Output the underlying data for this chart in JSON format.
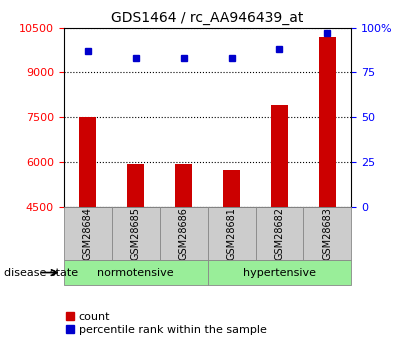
{
  "title": "GDS1464 / rc_AA946439_at",
  "samples": [
    "GSM28684",
    "GSM28685",
    "GSM28686",
    "GSM28681",
    "GSM28682",
    "GSM28683"
  ],
  "bar_values": [
    7500,
    5950,
    5950,
    5750,
    7900,
    10200
  ],
  "percentile_values": [
    87,
    83,
    83,
    83,
    88,
    97
  ],
  "bar_base": 4500,
  "left_ylim": [
    4500,
    10500
  ],
  "right_ylim": [
    0,
    100
  ],
  "left_yticks": [
    4500,
    6000,
    7500,
    9000,
    10500
  ],
  "right_yticks": [
    0,
    25,
    50,
    75,
    100
  ],
  "right_yticklabels": [
    "0",
    "25",
    "50",
    "75",
    "100%"
  ],
  "bar_color": "#cc0000",
  "dot_color": "#0000cc",
  "grid_color": "#000000",
  "group_label_norm": "normotensive",
  "group_label_hyper": "hypertensive",
  "group_bg_color": "#99ee99",
  "sample_bg_color": "#cccccc",
  "xlabel_bottom": "disease state",
  "legend_count": "count",
  "legend_percentile": "percentile rank within the sample",
  "title_fontsize": 10,
  "tick_fontsize": 8,
  "sample_fontsize": 7,
  "group_fontsize": 8,
  "legend_fontsize": 8
}
